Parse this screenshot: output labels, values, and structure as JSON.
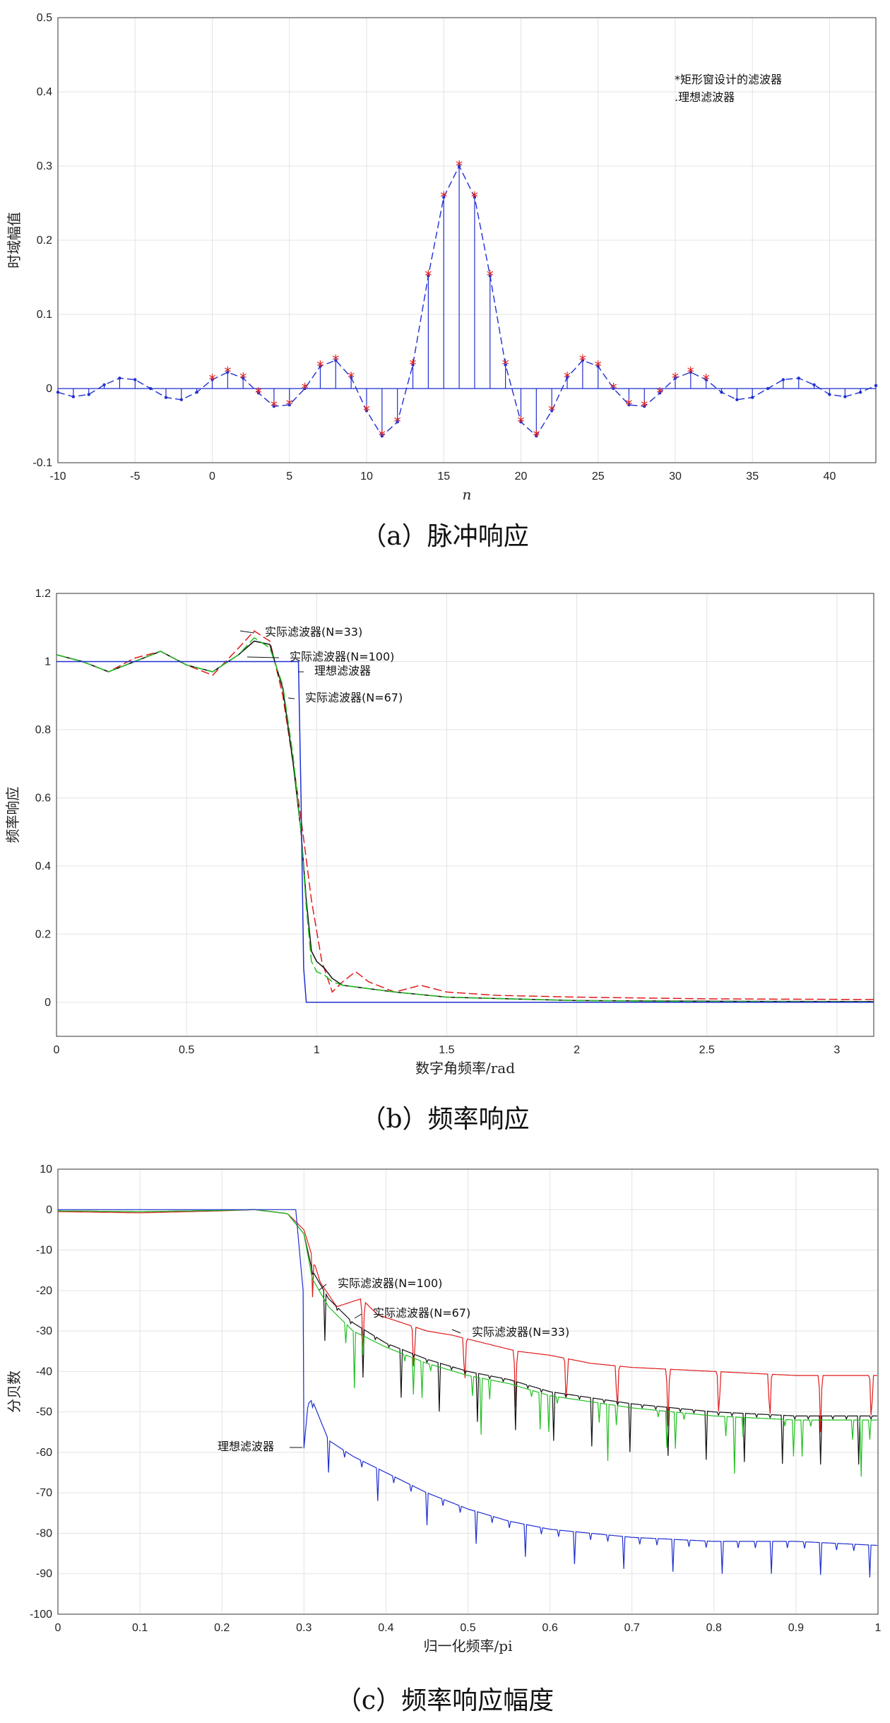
{
  "captions": {
    "a": "（a）脉冲响应",
    "b": "（b）频率响应",
    "c": "（c）频率响应幅度"
  },
  "colors": {
    "blue": "#1f2fd0",
    "red": "#e01b1b",
    "green": "#22c022",
    "black": "#111111",
    "grid": "#e3e3e3"
  },
  "chart_data": [
    {
      "type": "line",
      "xlabel": "n",
      "ylabel": "时域幅值",
      "xlim": [
        -10,
        43
      ],
      "ylim": [
        -0.1,
        0.5
      ],
      "xticks": [
        -10,
        -5,
        0,
        5,
        10,
        15,
        20,
        25,
        30,
        35,
        40
      ],
      "yticks": [
        -0.1,
        0,
        0.1,
        0.2,
        0.3,
        0.4,
        0.5
      ],
      "grid": true,
      "legend_position": "top-right",
      "legend": [
        "*矩形窗设计的滤波器",
        ".理想滤波器"
      ],
      "series": [
        {
          "name": "矩形窗设计的滤波器",
          "marker": "*",
          "x": [
            0,
            1,
            2,
            3,
            4,
            5,
            6,
            7,
            8,
            9,
            10,
            11,
            12,
            13,
            14,
            15,
            16,
            17,
            18,
            19,
            20,
            21,
            22,
            23,
            24,
            25,
            26,
            27,
            28,
            29,
            30,
            31,
            32
          ],
          "values": [
            0.012,
            0.022,
            0.014,
            -0.006,
            -0.024,
            -0.022,
            0.0,
            0.03,
            0.038,
            0.015,
            -0.03,
            -0.064,
            -0.045,
            0.032,
            0.152,
            0.258,
            0.3,
            0.258,
            0.152,
            0.032,
            -0.045,
            -0.064,
            -0.03,
            0.015,
            0.038,
            0.03,
            0.0,
            -0.022,
            -0.024,
            -0.006,
            0.014,
            0.022,
            0.012
          ]
        },
        {
          "name": "理想滤波器",
          "marker": ".",
          "x": [
            -10,
            -9,
            -8,
            -7,
            -6,
            -5,
            -4,
            -3,
            -2,
            -1,
            0,
            1,
            2,
            3,
            4,
            5,
            6,
            7,
            8,
            9,
            10,
            11,
            12,
            13,
            14,
            15,
            16,
            17,
            18,
            19,
            20,
            21,
            22,
            23,
            24,
            25,
            26,
            27,
            28,
            29,
            30,
            31,
            32,
            33,
            34,
            35,
            36,
            37,
            38,
            39,
            40,
            41,
            42,
            43
          ],
          "values": [
            -0.005,
            -0.011,
            -0.008,
            0.005,
            0.014,
            0.012,
            0.0,
            -0.012,
            -0.015,
            -0.005,
            0.012,
            0.022,
            0.014,
            -0.006,
            -0.024,
            -0.022,
            0.0,
            0.03,
            0.038,
            0.015,
            -0.03,
            -0.064,
            -0.045,
            0.032,
            0.152,
            0.258,
            0.3,
            0.258,
            0.152,
            0.032,
            -0.045,
            -0.064,
            -0.03,
            0.015,
            0.038,
            0.03,
            0.0,
            -0.022,
            -0.024,
            -0.006,
            0.014,
            0.022,
            0.012,
            -0.005,
            -0.015,
            -0.012,
            0.0,
            0.012,
            0.014,
            0.005,
            -0.008,
            -0.011,
            -0.005,
            0.004
          ]
        }
      ]
    },
    {
      "type": "line",
      "xlabel": "数字角频率/rad",
      "ylabel": "频率响应",
      "xlim": [
        0,
        3.1416
      ],
      "ylim": [
        -0.1,
        1.2
      ],
      "xticks": [
        0,
        0.5,
        1,
        1.5,
        2,
        2.5,
        3
      ],
      "yticks": [
        0,
        0.2,
        0.4,
        0.6,
        0.8,
        1,
        1.2
      ],
      "grid": true,
      "annotations": [
        "实际滤波器(N=33)",
        "实际滤波器(N=100)",
        "理想滤波器",
        "实际滤波器(N=67)"
      ],
      "series": [
        {
          "name": "实际滤波器(N=33)",
          "color": "red",
          "x": [
            0,
            0.1,
            0.2,
            0.3,
            0.4,
            0.5,
            0.6,
            0.7,
            0.76,
            0.82,
            0.87,
            0.92,
            0.95,
            0.98,
            1.02,
            1.06,
            1.1,
            1.15,
            1.2,
            1.3,
            1.4,
            1.5,
            1.7,
            2.0,
            2.5,
            3.14
          ],
          "values": [
            1.02,
            1.0,
            0.97,
            1.01,
            1.03,
            0.99,
            0.96,
            1.04,
            1.09,
            1.06,
            0.9,
            0.65,
            0.48,
            0.3,
            0.12,
            0.03,
            0.06,
            0.09,
            0.06,
            0.03,
            0.05,
            0.03,
            0.02,
            0.015,
            0.01,
            0.008
          ]
        },
        {
          "name": "实际滤波器(N=67)",
          "color": "black",
          "x": [
            0,
            0.1,
            0.2,
            0.3,
            0.4,
            0.5,
            0.6,
            0.7,
            0.76,
            0.82,
            0.87,
            0.91,
            0.94,
            0.96,
            0.98,
            1.0,
            1.03,
            1.06,
            1.1,
            1.2,
            1.3,
            1.5,
            2.0,
            2.5,
            3.14
          ],
          "values": [
            1.02,
            1.0,
            0.97,
            1.0,
            1.03,
            0.99,
            0.97,
            1.02,
            1.06,
            1.05,
            0.92,
            0.7,
            0.5,
            0.3,
            0.15,
            0.12,
            0.1,
            0.07,
            0.05,
            0.04,
            0.03,
            0.015,
            0.005,
            0.003,
            0.002
          ]
        },
        {
          "name": "实际滤波器(N=100)",
          "color": "green",
          "x": [
            0,
            0.1,
            0.2,
            0.3,
            0.4,
            0.5,
            0.6,
            0.7,
            0.76,
            0.82,
            0.87,
            0.91,
            0.94,
            0.96,
            0.98,
            1.0,
            1.03,
            1.06,
            1.1,
            1.2,
            1.3,
            1.5,
            2.0,
            2.5,
            3.14
          ],
          "values": [
            1.02,
            1.0,
            0.97,
            1.0,
            1.03,
            0.99,
            0.97,
            1.02,
            1.07,
            1.04,
            0.93,
            0.72,
            0.5,
            0.28,
            0.12,
            0.09,
            0.08,
            0.06,
            0.05,
            0.04,
            0.03,
            0.015,
            0.005,
            0.002,
            0.001
          ]
        },
        {
          "name": "理想滤波器",
          "color": "blue",
          "x": [
            0,
            0.5,
            0.9,
            0.93,
            0.94,
            0.95,
            0.96,
            1.0,
            3.14
          ],
          "values": [
            1.0,
            1.0,
            1.0,
            1.0,
            0.6,
            0.1,
            0.0,
            0.0,
            0.0
          ]
        }
      ]
    },
    {
      "type": "line",
      "xlabel": "归一化频率/pi",
      "ylabel": "分贝数",
      "xlim": [
        0,
        1
      ],
      "ylim": [
        -100,
        10
      ],
      "xticks": [
        0,
        0.1,
        0.2,
        0.3,
        0.4,
        0.5,
        0.6,
        0.7,
        0.8,
        0.9,
        1
      ],
      "yticks": [
        10,
        0,
        -10,
        -20,
        -30,
        -40,
        -50,
        -60,
        -70,
        -80,
        -90,
        -100
      ],
      "grid": true,
      "annotations": [
        "实际滤波器(N=100)",
        "实际滤波器(N=67)",
        "实际滤波器(N=33)",
        "理想滤波器"
      ],
      "series": [
        {
          "name": "实际滤波器(N=33)",
          "color": "red",
          "x": [
            0,
            0.1,
            0.2,
            0.24,
            0.28,
            0.3,
            0.32,
            0.34,
            0.37,
            0.39,
            0.42,
            0.45,
            0.48,
            0.52,
            0.56,
            0.6,
            0.65,
            0.7,
            0.8,
            0.9,
            1.0
          ],
          "values": [
            -0.5,
            -0.8,
            -0.3,
            0,
            -1,
            -5,
            -18,
            -24,
            -22,
            -26,
            -28,
            -30,
            -31,
            -33,
            -35,
            -36,
            -38,
            -39,
            -40,
            -41,
            -41
          ]
        },
        {
          "name": "实际滤波器(N=67)",
          "color": "black",
          "x": [
            0,
            0.1,
            0.2,
            0.24,
            0.28,
            0.3,
            0.31,
            0.33,
            0.36,
            0.4,
            0.45,
            0.5,
            0.55,
            0.6,
            0.7,
            0.8,
            0.9,
            1.0
          ],
          "values": [
            -0.3,
            -0.5,
            -0.2,
            0,
            -1,
            -6,
            -15,
            -22,
            -28,
            -33,
            -37,
            -40,
            -42,
            -45,
            -48,
            -50,
            -51,
            -51
          ]
        },
        {
          "name": "实际滤波器(N=100)",
          "color": "green",
          "x": [
            0,
            0.1,
            0.2,
            0.24,
            0.28,
            0.3,
            0.31,
            0.33,
            0.36,
            0.4,
            0.45,
            0.5,
            0.55,
            0.6,
            0.7,
            0.8,
            0.9,
            1.0
          ],
          "values": [
            -0.3,
            -0.5,
            -0.2,
            0,
            -1,
            -6,
            -17,
            -24,
            -30,
            -34,
            -38,
            -41,
            -43,
            -46,
            -49,
            -51,
            -52,
            -52
          ]
        },
        {
          "name": "理想滤波器",
          "color": "blue",
          "x": [
            0,
            0.1,
            0.2,
            0.29,
            0.298,
            0.3,
            0.305,
            0.31,
            0.33,
            0.36,
            0.4,
            0.45,
            0.5,
            0.55,
            0.6,
            0.65,
            0.7,
            0.8,
            0.9,
            1.0
          ],
          "values": [
            0,
            0,
            0,
            0,
            -20,
            -59,
            -48,
            -47,
            -57,
            -61,
            -65,
            -70,
            -74,
            -77,
            -79,
            -80,
            -81,
            -82,
            -82,
            -83
          ]
        }
      ]
    }
  ]
}
